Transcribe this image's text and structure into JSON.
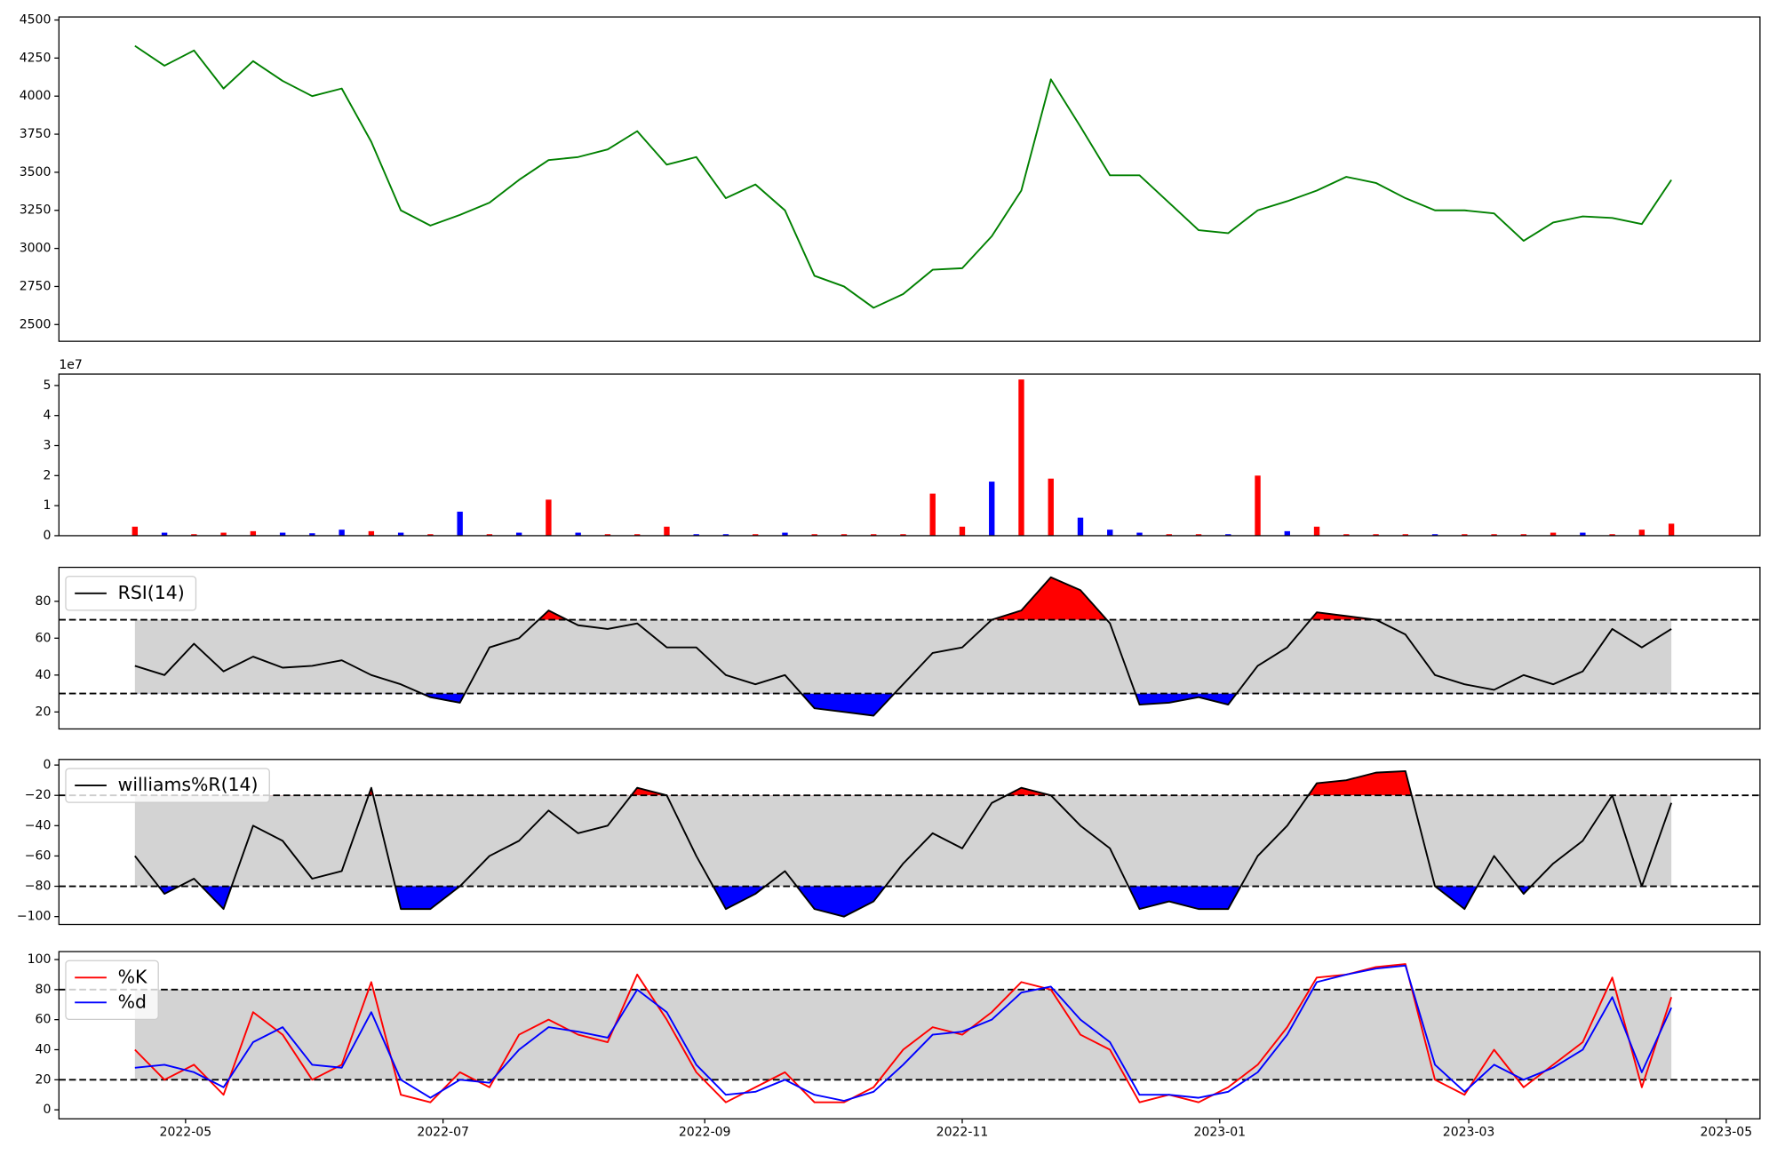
{
  "chart_data": [
    {
      "type": "line",
      "color": "green",
      "x": [
        19101,
        19108,
        19115,
        19122,
        19129,
        19136,
        19143,
        19150,
        19157,
        19164,
        19171,
        19178,
        19185,
        19192,
        19199,
        19206,
        19213,
        19220,
        19227,
        19234,
        19241,
        19248,
        19255,
        19262,
        19269,
        19276,
        19283,
        19290,
        19297,
        19304,
        19311,
        19318,
        19325,
        19332,
        19339,
        19346,
        19353,
        19360,
        19367,
        19374,
        19381,
        19388,
        19395,
        19402,
        19409,
        19416,
        19423,
        19430,
        19437,
        19444,
        19451,
        19458,
        19465
      ],
      "values": [
        4330,
        4200,
        4300,
        4050,
        4230,
        4100,
        4000,
        4050,
        3700,
        3250,
        3150,
        3220,
        3300,
        3450,
        3580,
        3600,
        3650,
        3770,
        3550,
        3600,
        3330,
        3420,
        3250,
        2820,
        2750,
        2610,
        2700,
        2860,
        2870,
        3080,
        3380,
        4110,
        3800,
        3480,
        3480,
        3300,
        3120,
        3100,
        3250,
        3310,
        3380,
        3470,
        3430,
        3330,
        3250,
        3250,
        3230,
        3050,
        3170,
        3210,
        3200,
        3160,
        3450
      ],
      "xlim": [
        19083,
        19486
      ],
      "ylim": [
        2390,
        4520
      ],
      "yticks": [
        2500,
        2750,
        3000,
        3250,
        3500,
        3750,
        4000,
        4250,
        4500
      ]
    },
    {
      "type": "bar",
      "offset_label": "1e7",
      "x": [
        19101,
        19108,
        19115,
        19122,
        19129,
        19136,
        19143,
        19150,
        19157,
        19164,
        19171,
        19178,
        19185,
        19192,
        19199,
        19206,
        19213,
        19220,
        19227,
        19234,
        19241,
        19248,
        19255,
        19262,
        19269,
        19276,
        19283,
        19290,
        19297,
        19304,
        19311,
        19318,
        19325,
        19332,
        19339,
        19346,
        19353,
        19360,
        19367,
        19374,
        19381,
        19388,
        19395,
        19402,
        19409,
        19416,
        19423,
        19430,
        19437,
        19444,
        19451,
        19458,
        19465
      ],
      "values": [
        3000000,
        1000000,
        500000,
        1000000,
        1500000,
        1000000,
        800000,
        2000000,
        1500000,
        1000000,
        500000,
        8000000,
        500000,
        1000000,
        12000000,
        1000000,
        500000,
        500000,
        3000000,
        500000,
        500000,
        500000,
        1000000,
        500000,
        500000,
        500000,
        500000,
        14000000,
        3000000,
        18000000,
        52000000,
        19000000,
        6000000,
        2000000,
        1000000,
        500000,
        500000,
        500000,
        20000000,
        1500000,
        3000000,
        500000,
        500000,
        500000,
        500000,
        500000,
        500000,
        500000,
        1000000,
        1000000,
        500000,
        2000000,
        4000000
      ],
      "colors": [
        "red",
        "blue",
        "red",
        "red",
        "red",
        "blue",
        "blue",
        "blue",
        "red",
        "blue",
        "red",
        "blue",
        "red",
        "blue",
        "red",
        "blue",
        "red",
        "red",
        "red",
        "blue",
        "blue",
        "red",
        "blue",
        "red",
        "red",
        "red",
        "red",
        "red",
        "red",
        "blue",
        "red",
        "red",
        "blue",
        "blue",
        "blue",
        "red",
        "red",
        "blue",
        "red",
        "blue",
        "red",
        "red",
        "red",
        "red",
        "blue",
        "red",
        "red",
        "red",
        "red",
        "blue",
        "red",
        "red",
        "red"
      ],
      "xlim": [
        19083,
        19486
      ],
      "ylim": [
        0,
        53800000
      ],
      "yticks": [
        0,
        {
          "value": 10000000,
          "label": "1"
        },
        {
          "value": 20000000,
          "label": "2"
        },
        {
          "value": 30000000,
          "label": "3"
        },
        {
          "value": 40000000,
          "label": "4"
        },
        {
          "value": 50000000,
          "label": "5"
        }
      ]
    },
    {
      "type": "line",
      "color": "black",
      "name": "RSI(14)",
      "legend": "upper left",
      "thresholds": [
        30,
        70
      ],
      "band_color": "lightgray",
      "above_color": "red",
      "below_color": "blue",
      "x": [
        19101,
        19108,
        19115,
        19122,
        19129,
        19136,
        19143,
        19150,
        19157,
        19164,
        19171,
        19178,
        19185,
        19192,
        19199,
        19206,
        19213,
        19220,
        19227,
        19234,
        19241,
        19248,
        19255,
        19262,
        19269,
        19276,
        19283,
        19290,
        19297,
        19304,
        19311,
        19318,
        19325,
        19332,
        19339,
        19346,
        19353,
        19360,
        19367,
        19374,
        19381,
        19388,
        19395,
        19402,
        19409,
        19416,
        19423,
        19430,
        19437,
        19444,
        19451,
        19458,
        19465
      ],
      "values": [
        45,
        40,
        57,
        42,
        50,
        44,
        45,
        48,
        40,
        35,
        28,
        25,
        55,
        60,
        75,
        67,
        65,
        68,
        55,
        55,
        40,
        35,
        40,
        22,
        20,
        18,
        35,
        52,
        55,
        70,
        75,
        93,
        86,
        68,
        24,
        25,
        28,
        24,
        45,
        55,
        74,
        72,
        70,
        62,
        40,
        35,
        32,
        40,
        35,
        42,
        65,
        55,
        65
      ],
      "xlim": [
        19083,
        19486
      ],
      "ylim": [
        10.8,
        98.4
      ],
      "yticks": [
        20,
        40,
        60,
        80
      ]
    },
    {
      "type": "line",
      "color": "black",
      "name": "williams%R(14)",
      "legend": "upper left",
      "thresholds": [
        -80,
        -20
      ],
      "band_color": "lightgray",
      "above_color": "red",
      "below_color": "blue",
      "x": [
        19101,
        19108,
        19115,
        19122,
        19129,
        19136,
        19143,
        19150,
        19157,
        19164,
        19171,
        19178,
        19185,
        19192,
        19199,
        19206,
        19213,
        19220,
        19227,
        19234,
        19241,
        19248,
        19255,
        19262,
        19269,
        19276,
        19283,
        19290,
        19297,
        19304,
        19311,
        19318,
        19325,
        19332,
        19339,
        19346,
        19353,
        19360,
        19367,
        19374,
        19381,
        19388,
        19395,
        19402,
        19409,
        19416,
        19423,
        19430,
        19437,
        19444,
        19451,
        19458,
        19465
      ],
      "values": [
        -60,
        -85,
        -75,
        -95,
        -40,
        -50,
        -75,
        -70,
        -15,
        -95,
        -95,
        -80,
        -60,
        -50,
        -30,
        -45,
        -40,
        -15,
        -20,
        -60,
        -95,
        -85,
        -70,
        -95,
        -100,
        -90,
        -65,
        -45,
        -55,
        -25,
        -15,
        -20,
        -40,
        -55,
        -95,
        -90,
        -95,
        -95,
        -60,
        -40,
        -12,
        -10,
        -5,
        -4,
        -80,
        -95,
        -60,
        -85,
        -65,
        -50,
        -20,
        -80,
        -25
      ],
      "xlim": [
        19083,
        19486
      ],
      "ylim": [
        -105.2,
        3.7
      ],
      "yticks": [
        {
          "value": -100,
          "label": "−100"
        },
        {
          "value": -80,
          "label": "−80"
        },
        {
          "value": -60,
          "label": "−60"
        },
        {
          "value": -40,
          "label": "−40"
        },
        {
          "value": -20,
          "label": "−20"
        },
        0
      ]
    },
    {
      "type": "line",
      "legend": "upper left",
      "thresholds": [
        20,
        80
      ],
      "band_color": "lightgray",
      "x": [
        19101,
        19108,
        19115,
        19122,
        19129,
        19136,
        19143,
        19150,
        19157,
        19164,
        19171,
        19178,
        19185,
        19192,
        19199,
        19206,
        19213,
        19220,
        19227,
        19234,
        19241,
        19248,
        19255,
        19262,
        19269,
        19276,
        19283,
        19290,
        19297,
        19304,
        19311,
        19318,
        19325,
        19332,
        19339,
        19346,
        19353,
        19360,
        19367,
        19374,
        19381,
        19388,
        19395,
        19402,
        19409,
        19416,
        19423,
        19430,
        19437,
        19444,
        19451,
        19458,
        19465
      ],
      "series": [
        {
          "name": "%K",
          "color": "red",
          "values": [
            40,
            20,
            30,
            10,
            65,
            50,
            20,
            30,
            85,
            10,
            5,
            25,
            15,
            50,
            60,
            50,
            45,
            90,
            60,
            25,
            5,
            15,
            25,
            5,
            5,
            15,
            40,
            55,
            50,
            65,
            85,
            80,
            50,
            40,
            5,
            10,
            5,
            15,
            30,
            55,
            88,
            90,
            95,
            97,
            20,
            10,
            40,
            15,
            30,
            45,
            88,
            15,
            75
          ]
        },
        {
          "name": "%d",
          "color": "blue",
          "values": [
            28,
            30,
            25,
            15,
            45,
            55,
            30,
            28,
            65,
            20,
            8,
            20,
            18,
            40,
            55,
            52,
            48,
            80,
            65,
            30,
            10,
            12,
            20,
            10,
            6,
            12,
            30,
            50,
            52,
            60,
            78,
            82,
            60,
            45,
            10,
            10,
            8,
            12,
            25,
            50,
            85,
            90,
            94,
            96,
            30,
            12,
            30,
            20,
            28,
            40,
            75,
            25,
            68
          ]
        }
      ],
      "xlim": [
        19083,
        19486
      ],
      "ylim": [
        -6,
        105.3
      ],
      "yticks": [
        0,
        20,
        40,
        60,
        80,
        100
      ],
      "xticks": [
        {
          "value": 19113,
          "label": "2022-05"
        },
        {
          "value": 19174,
          "label": "2022-07"
        },
        {
          "value": 19236,
          "label": "2022-09"
        },
        {
          "value": 19297,
          "label": "2022-11"
        },
        {
          "value": 19358,
          "label": "2023-01"
        },
        {
          "value": 19417,
          "label": "2023-03"
        },
        {
          "value": 19478,
          "label": "2023-05"
        }
      ]
    }
  ]
}
